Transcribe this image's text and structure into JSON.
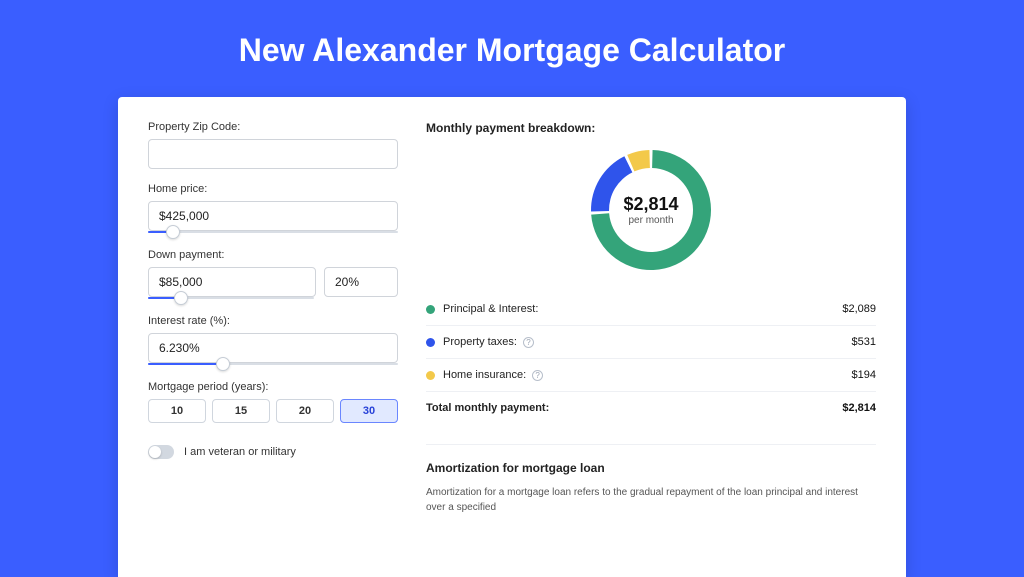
{
  "page_title": "New Alexander Mortgage Calculator",
  "colors": {
    "page_bg": "#3a5eff",
    "card_bg": "#ffffff",
    "accent": "#3a5eff",
    "input_border": "#d0d4da",
    "divider": "#eef0f4",
    "text": "#222222"
  },
  "form": {
    "zip": {
      "label": "Property Zip Code:",
      "value": ""
    },
    "home_price": {
      "label": "Home price:",
      "value": "$425,000",
      "slider_pct": 10
    },
    "down_payment": {
      "label": "Down payment:",
      "value": "$85,000",
      "pct": "20%",
      "slider_pct": 20
    },
    "interest_rate": {
      "label": "Interest rate (%):",
      "value": "6.230%",
      "slider_pct": 30
    },
    "period": {
      "label": "Mortgage period (years):",
      "options": [
        "10",
        "15",
        "20",
        "30"
      ],
      "active_index": 3
    },
    "veteran": {
      "label": "I am veteran or military",
      "checked": false
    }
  },
  "breakdown": {
    "title": "Monthly payment breakdown:",
    "donut": {
      "amount": "$2,814",
      "sub": "per month",
      "segments": [
        {
          "label": "Principal & Interest:",
          "value": "$2,089",
          "color": "#34a47a",
          "frac": 0.742,
          "help": false
        },
        {
          "label": "Property taxes:",
          "value": "$531",
          "color": "#2f54eb",
          "frac": 0.189,
          "help": true
        },
        {
          "label": "Home insurance:",
          "value": "$194",
          "color": "#f3c94a",
          "frac": 0.069,
          "help": true
        }
      ],
      "thickness": 18,
      "gap_deg": 3
    },
    "total": {
      "label": "Total monthly payment:",
      "value": "$2,814"
    }
  },
  "amortization": {
    "title": "Amortization for mortgage loan",
    "text": "Amortization for a mortgage loan refers to the gradual repayment of the loan principal and interest over a specified"
  }
}
